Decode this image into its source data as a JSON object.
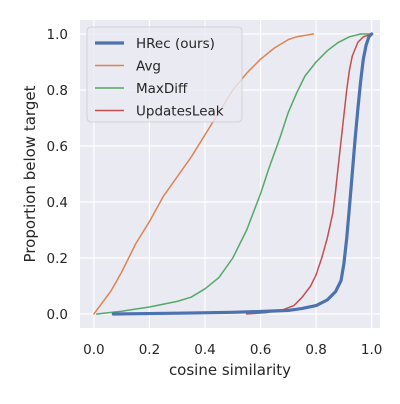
{
  "chart_data": {
    "type": "line",
    "xlabel": "cosine similarity",
    "ylabel": "Proportion below target",
    "xlim": [
      -0.05,
      1.03
    ],
    "ylim": [
      -0.05,
      1.05
    ],
    "xticks": [
      0.0,
      0.2,
      0.4,
      0.6,
      0.8,
      1.0
    ],
    "xtick_labels": [
      "0.0",
      "0.2",
      "0.4",
      "0.6",
      "0.8",
      "1.0"
    ],
    "yticks": [
      0.0,
      0.2,
      0.4,
      0.6,
      0.8,
      1.0
    ],
    "ytick_labels": [
      "0.0",
      "0.2",
      "0.4",
      "0.6",
      "0.8",
      "1.0"
    ],
    "grid": true,
    "legend_position": "top-left",
    "series": [
      {
        "name": "HRec (ours)",
        "color": "#4c72b0",
        "width": 3.2,
        "points": [
          [
            0.07,
            0.0
          ],
          [
            0.3,
            0.003
          ],
          [
            0.5,
            0.006
          ],
          [
            0.6,
            0.009
          ],
          [
            0.7,
            0.013
          ],
          [
            0.75,
            0.02
          ],
          [
            0.8,
            0.03
          ],
          [
            0.84,
            0.05
          ],
          [
            0.87,
            0.08
          ],
          [
            0.89,
            0.12
          ],
          [
            0.9,
            0.18
          ],
          [
            0.91,
            0.27
          ],
          [
            0.92,
            0.38
          ],
          [
            0.93,
            0.5
          ],
          [
            0.94,
            0.62
          ],
          [
            0.95,
            0.73
          ],
          [
            0.96,
            0.83
          ],
          [
            0.97,
            0.91
          ],
          [
            0.98,
            0.96
          ],
          [
            0.99,
            0.99
          ],
          [
            1.0,
            1.0
          ]
        ]
      },
      {
        "name": "Avg",
        "color": "#dd8452",
        "width": 1.5,
        "points": [
          [
            0.0,
            0.0
          ],
          [
            0.03,
            0.04
          ],
          [
            0.06,
            0.08
          ],
          [
            0.1,
            0.15
          ],
          [
            0.15,
            0.25
          ],
          [
            0.2,
            0.33
          ],
          [
            0.25,
            0.42
          ],
          [
            0.3,
            0.49
          ],
          [
            0.35,
            0.56
          ],
          [
            0.4,
            0.64
          ],
          [
            0.45,
            0.72
          ],
          [
            0.5,
            0.8
          ],
          [
            0.55,
            0.86
          ],
          [
            0.6,
            0.91
          ],
          [
            0.65,
            0.95
          ],
          [
            0.7,
            0.98
          ],
          [
            0.73,
            0.99
          ],
          [
            0.79,
            1.0
          ]
        ]
      },
      {
        "name": "MaxDiff",
        "color": "#55a868",
        "width": 1.5,
        "points": [
          [
            0.01,
            0.0
          ],
          [
            0.1,
            0.01
          ],
          [
            0.2,
            0.025
          ],
          [
            0.3,
            0.045
          ],
          [
            0.35,
            0.06
          ],
          [
            0.4,
            0.09
          ],
          [
            0.45,
            0.13
          ],
          [
            0.5,
            0.2
          ],
          [
            0.55,
            0.3
          ],
          [
            0.6,
            0.43
          ],
          [
            0.63,
            0.52
          ],
          [
            0.67,
            0.63
          ],
          [
            0.7,
            0.72
          ],
          [
            0.73,
            0.79
          ],
          [
            0.76,
            0.85
          ],
          [
            0.8,
            0.9
          ],
          [
            0.84,
            0.94
          ],
          [
            0.88,
            0.97
          ],
          [
            0.92,
            0.99
          ],
          [
            0.96,
            1.0
          ],
          [
            1.0,
            1.0
          ]
        ]
      },
      {
        "name": "UpdatesLeak",
        "color": "#c44e52",
        "width": 1.5,
        "points": [
          [
            0.55,
            0.0
          ],
          [
            0.62,
            0.005
          ],
          [
            0.68,
            0.015
          ],
          [
            0.72,
            0.03
          ],
          [
            0.75,
            0.06
          ],
          [
            0.78,
            0.1
          ],
          [
            0.8,
            0.14
          ],
          [
            0.82,
            0.2
          ],
          [
            0.84,
            0.27
          ],
          [
            0.86,
            0.36
          ],
          [
            0.87,
            0.44
          ],
          [
            0.88,
            0.53
          ],
          [
            0.89,
            0.62
          ],
          [
            0.9,
            0.71
          ],
          [
            0.91,
            0.8
          ],
          [
            0.92,
            0.87
          ],
          [
            0.93,
            0.92
          ],
          [
            0.95,
            0.97
          ],
          [
            0.97,
            0.99
          ],
          [
            1.0,
            1.0
          ]
        ]
      }
    ]
  }
}
